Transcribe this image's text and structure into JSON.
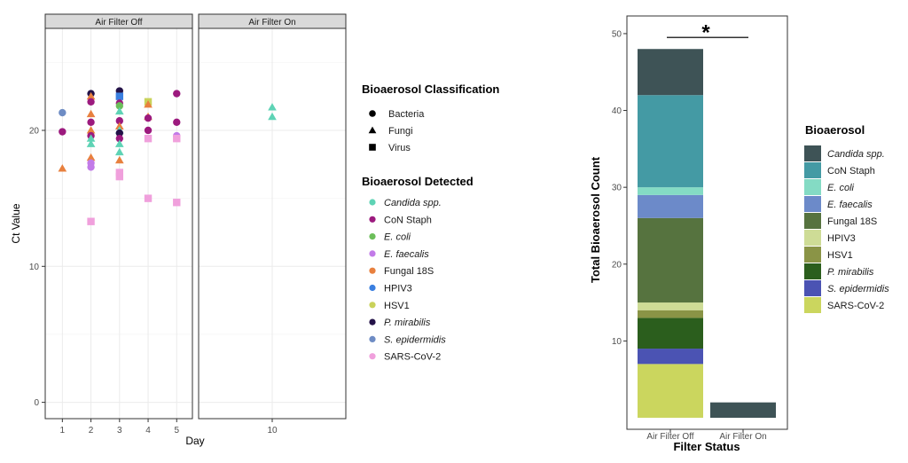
{
  "chart_data": [
    {
      "type": "scatter",
      "title": "",
      "xlabel": "Day",
      "ylabel": "Ct Value",
      "ylim": [
        -1.2,
        27.5
      ],
      "yticks": [
        0,
        10,
        20
      ],
      "grid": true,
      "facets": [
        {
          "label": "Air Filter Off",
          "xticks": [
            1,
            2,
            3,
            4,
            5
          ],
          "xlim": [
            0.4,
            5.55
          ]
        },
        {
          "label": "Air Filter On",
          "xticks": [
            10
          ],
          "xlim": [
            7.4,
            12.6
          ]
        }
      ],
      "shape_legend": {
        "title": "Bioaerosol Classification",
        "items": [
          {
            "label": "Bacteria",
            "shape": "circle"
          },
          {
            "label": "Fungi",
            "shape": "triangle"
          },
          {
            "label": "Virus",
            "shape": "square"
          }
        ]
      },
      "color_legend": {
        "title": "Bioaerosol Detected",
        "items": [
          {
            "label": "Candida spp.",
            "color": "#5ED3B5",
            "italic": true
          },
          {
            "label": "CoN Staph",
            "color": "#9C1A7E",
            "italic": false
          },
          {
            "label": "E. coli",
            "color": "#6CBE5A",
            "italic": true
          },
          {
            "label": "E. faecalis",
            "color": "#C27BE8",
            "italic": true
          },
          {
            "label": "Fungal 18S",
            "color": "#E8803E",
            "italic": false
          },
          {
            "label": "HPIV3",
            "color": "#3A7FE0",
            "italic": false
          },
          {
            "label": "HSV1",
            "color": "#C9D25A",
            "italic": false
          },
          {
            "label": "P. mirabilis",
            "color": "#241248",
            "italic": true
          },
          {
            "label": "S. epidermidis",
            "color": "#6E8CC4",
            "italic": true
          },
          {
            "label": "SARS-CoV-2",
            "color": "#F0A0DC",
            "italic": false
          }
        ]
      },
      "points": [
        {
          "facet": 0,
          "x": 1,
          "y": 21.3,
          "organism": "S. epidermidis",
          "class": "Bacteria"
        },
        {
          "facet": 0,
          "x": 1,
          "y": 19.9,
          "organism": "CoN Staph",
          "class": "Bacteria"
        },
        {
          "facet": 0,
          "x": 1,
          "y": 17.2,
          "organism": "Fungal 18S",
          "class": "Fungi"
        },
        {
          "facet": 0,
          "x": 2,
          "y": 22.7,
          "organism": "P. mirabilis",
          "class": "Bacteria"
        },
        {
          "facet": 0,
          "x": 2,
          "y": 22.5,
          "organism": "Fungal 18S",
          "class": "Fungi"
        },
        {
          "facet": 0,
          "x": 2,
          "y": 22.1,
          "organism": "CoN Staph",
          "class": "Bacteria"
        },
        {
          "facet": 0,
          "x": 2,
          "y": 21.2,
          "organism": "Fungal 18S",
          "class": "Fungi"
        },
        {
          "facet": 0,
          "x": 2,
          "y": 20.6,
          "organism": "CoN Staph",
          "class": "Bacteria"
        },
        {
          "facet": 0,
          "x": 2,
          "y": 20.0,
          "organism": "Fungal 18S",
          "class": "Fungi"
        },
        {
          "facet": 0,
          "x": 2,
          "y": 19.6,
          "organism": "CoN Staph",
          "class": "Bacteria"
        },
        {
          "facet": 0,
          "x": 2,
          "y": 19.4,
          "organism": "Candida spp.",
          "class": "Fungi"
        },
        {
          "facet": 0,
          "x": 2,
          "y": 19.0,
          "organism": "Candida spp.",
          "class": "Fungi"
        },
        {
          "facet": 0,
          "x": 2,
          "y": 18.0,
          "organism": "Fungal 18S",
          "class": "Fungi"
        },
        {
          "facet": 0,
          "x": 2,
          "y": 17.6,
          "organism": "E. faecalis",
          "class": "Bacteria"
        },
        {
          "facet": 0,
          "x": 2,
          "y": 17.3,
          "organism": "E. faecalis",
          "class": "Bacteria"
        },
        {
          "facet": 0,
          "x": 2,
          "y": 13.3,
          "organism": "SARS-CoV-2",
          "class": "Virus"
        },
        {
          "facet": 0,
          "x": 3,
          "y": 22.9,
          "organism": "P. mirabilis",
          "class": "Bacteria"
        },
        {
          "facet": 0,
          "x": 3,
          "y": 22.5,
          "organism": "HPIV3",
          "class": "Virus"
        },
        {
          "facet": 0,
          "x": 3,
          "y": 22.0,
          "organism": "CoN Staph",
          "class": "Bacteria"
        },
        {
          "facet": 0,
          "x": 3,
          "y": 21.8,
          "organism": "E. coli",
          "class": "Bacteria"
        },
        {
          "facet": 0,
          "x": 3,
          "y": 21.4,
          "organism": "Candida spp.",
          "class": "Fungi"
        },
        {
          "facet": 0,
          "x": 3,
          "y": 20.7,
          "organism": "CoN Staph",
          "class": "Bacteria"
        },
        {
          "facet": 0,
          "x": 3,
          "y": 20.3,
          "organism": "Fungal 18S",
          "class": "Fungi"
        },
        {
          "facet": 0,
          "x": 3,
          "y": 20.0,
          "organism": "Candida spp.",
          "class": "Fungi"
        },
        {
          "facet": 0,
          "x": 3,
          "y": 19.8,
          "organism": "P. mirabilis",
          "class": "Bacteria"
        },
        {
          "facet": 0,
          "x": 3,
          "y": 19.4,
          "organism": "CoN Staph",
          "class": "Bacteria"
        },
        {
          "facet": 0,
          "x": 3,
          "y": 19.0,
          "organism": "Candida spp.",
          "class": "Fungi"
        },
        {
          "facet": 0,
          "x": 3,
          "y": 18.4,
          "organism": "Candida spp.",
          "class": "Fungi"
        },
        {
          "facet": 0,
          "x": 3,
          "y": 17.8,
          "organism": "Fungal 18S",
          "class": "Fungi"
        },
        {
          "facet": 0,
          "x": 3,
          "y": 16.9,
          "organism": "SARS-CoV-2",
          "class": "Virus"
        },
        {
          "facet": 0,
          "x": 3,
          "y": 16.6,
          "organism": "SARS-CoV-2",
          "class": "Virus"
        },
        {
          "facet": 0,
          "x": 4,
          "y": 22.1,
          "organism": "HSV1",
          "class": "Virus"
        },
        {
          "facet": 0,
          "x": 4,
          "y": 21.9,
          "organism": "Fungal 18S",
          "class": "Fungi"
        },
        {
          "facet": 0,
          "x": 4,
          "y": 21.0,
          "organism": "Fungal 18S",
          "class": "Fungi"
        },
        {
          "facet": 0,
          "x": 4,
          "y": 20.9,
          "organism": "CoN Staph",
          "class": "Bacteria"
        },
        {
          "facet": 0,
          "x": 4,
          "y": 20.0,
          "organism": "CoN Staph",
          "class": "Bacteria"
        },
        {
          "facet": 0,
          "x": 4,
          "y": 19.4,
          "organism": "SARS-CoV-2",
          "class": "Virus"
        },
        {
          "facet": 0,
          "x": 4,
          "y": 15.0,
          "organism": "SARS-CoV-2",
          "class": "Virus"
        },
        {
          "facet": 0,
          "x": 5,
          "y": 22.7,
          "organism": "CoN Staph",
          "class": "Bacteria"
        },
        {
          "facet": 0,
          "x": 5,
          "y": 20.6,
          "organism": "CoN Staph",
          "class": "Bacteria"
        },
        {
          "facet": 0,
          "x": 5,
          "y": 19.6,
          "organism": "E. faecalis",
          "class": "Bacteria"
        },
        {
          "facet": 0,
          "x": 5,
          "y": 19.4,
          "organism": "SARS-CoV-2",
          "class": "Virus"
        },
        {
          "facet": 0,
          "x": 5,
          "y": 14.7,
          "organism": "SARS-CoV-2",
          "class": "Virus"
        },
        {
          "facet": 1,
          "x": 10,
          "y": 21.7,
          "organism": "Candida spp.",
          "class": "Fungi"
        },
        {
          "facet": 1,
          "x": 10,
          "y": 21.0,
          "organism": "Candida spp.",
          "class": "Fungi"
        }
      ]
    },
    {
      "type": "bar",
      "stacked": true,
      "title": "",
      "xlabel": "Filter Status",
      "ylabel": "Total Bioaerosol Count",
      "ylim": [
        -1.5,
        52.3
      ],
      "yticks": [
        10,
        20,
        30,
        40,
        50
      ],
      "categories": [
        "Air Filter Off",
        "Air Filter On"
      ],
      "annotation": {
        "text": "*",
        "type": "significance-bracket",
        "between": [
          "Air Filter Off",
          "Air Filter On"
        ],
        "y": 49.5
      },
      "legend": {
        "title": "Bioaerosol",
        "position": "right"
      },
      "series": [
        {
          "name": "SARS-CoV-2",
          "color": "#CBD65E",
          "italic": false,
          "values": [
            7,
            0
          ]
        },
        {
          "name": "S. epidermidis",
          "color": "#4B53B3",
          "italic": true,
          "values": [
            2,
            0
          ]
        },
        {
          "name": "P. mirabilis",
          "color": "#2B5E1D",
          "italic": true,
          "values": [
            4,
            0
          ]
        },
        {
          "name": "HSV1",
          "color": "#8A9446",
          "italic": false,
          "values": [
            1,
            0
          ]
        },
        {
          "name": "HPIV3",
          "color": "#CEDC96",
          "italic": false,
          "values": [
            1,
            0
          ]
        },
        {
          "name": "Fungal 18S",
          "color": "#56733F",
          "italic": false,
          "values": [
            11,
            0
          ]
        },
        {
          "name": "E. faecalis",
          "color": "#6C8AC9",
          "italic": true,
          "values": [
            3,
            0
          ]
        },
        {
          "name": "E. coli",
          "color": "#84DBC4",
          "italic": true,
          "values": [
            1,
            0
          ]
        },
        {
          "name": "CoN Staph",
          "color": "#449AA4",
          "italic": false,
          "values": [
            12,
            0
          ]
        },
        {
          "name": "Candida spp.",
          "color": "#3E5356",
          "italic": true,
          "values": [
            6,
            2
          ]
        }
      ]
    }
  ]
}
